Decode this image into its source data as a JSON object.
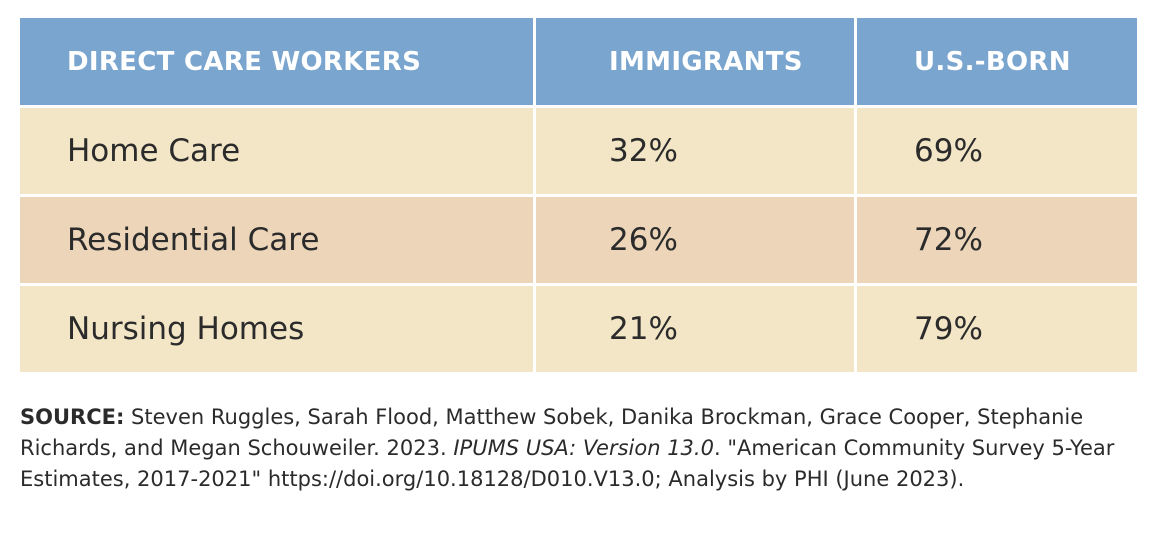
{
  "table": {
    "headers": [
      "DIRECT CARE WORKERS",
      "IMMIGRANTS",
      "U.S.-BORN"
    ],
    "rows": [
      [
        "Home Care",
        "32%",
        "69%"
      ],
      [
        "Residential Care",
        "26%",
        "72%"
      ],
      [
        "Nursing Homes",
        "21%",
        "79%"
      ]
    ]
  },
  "source": {
    "label": "SOURCE:",
    "text_1": "Steven Ruggles, Sarah Flood, Matthew Sobek, Danika Brockman, Grace Cooper, Stephanie Richards, and Megan Schouweiler. 2023.",
    "italic": "IPUMS USA: Version 13.0",
    "text_2": ". \"American Community Survey 5-Year Estimates, 2017-2021\" https://doi.org/10.18128/D010.V13.0; Analysis by PHI (June 2023)."
  },
  "colors": {
    "header_bg": "#7aa5ce",
    "row_light": "#f3e6c6",
    "row_tan": "#ecd5b8"
  }
}
